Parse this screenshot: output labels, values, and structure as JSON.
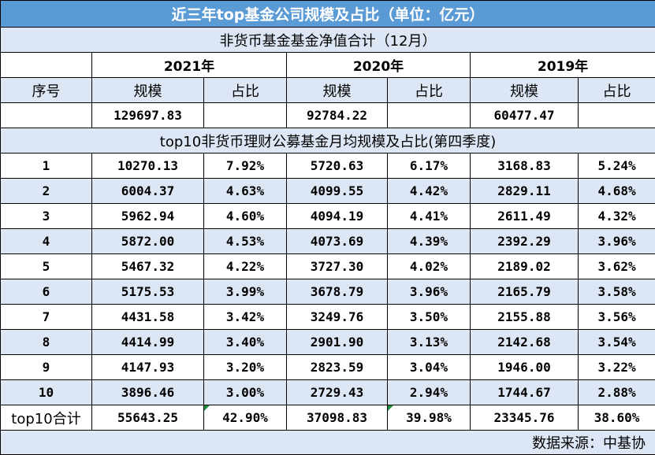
{
  "title": "近三年top基金公司规模及占比（单位：亿元）",
  "section1_title": "非货币基金基金净值合计（12月）",
  "years": [
    "2021年",
    "2020年",
    "2019年"
  ],
  "seq_header": "序号",
  "scale_header": "规模",
  "ratio_header": "占比",
  "totals": [
    "129697.83",
    "92784.22",
    "60477.47"
  ],
  "section2_title": "top10非货币理财公募基金月均规模及占比(第四季度)",
  "rows": [
    {
      "seq": "1",
      "v2021": "10270.13",
      "p2021": "7.92%",
      "v2020": "5720.63",
      "p2020": "6.17%",
      "v2019": "3168.83",
      "p2019": "5.24%"
    },
    {
      "seq": "2",
      "v2021": "6004.37",
      "p2021": "4.63%",
      "v2020": "4099.55",
      "p2020": "4.42%",
      "v2019": "2829.11",
      "p2019": "4.68%"
    },
    {
      "seq": "3",
      "v2021": "5962.94",
      "p2021": "4.60%",
      "v2020": "4094.19",
      "p2020": "4.41%",
      "v2019": "2611.49",
      "p2019": "4.32%"
    },
    {
      "seq": "4",
      "v2021": "5872.00",
      "p2021": "4.53%",
      "v2020": "4073.69",
      "p2020": "4.39%",
      "v2019": "2392.29",
      "p2019": "3.96%"
    },
    {
      "seq": "5",
      "v2021": "5467.32",
      "p2021": "4.22%",
      "v2020": "3727.30",
      "p2020": "4.02%",
      "v2019": "2189.02",
      "p2019": "3.62%"
    },
    {
      "seq": "6",
      "v2021": "5175.53",
      "p2021": "3.99%",
      "v2020": "3678.79",
      "p2020": "3.96%",
      "v2019": "2165.79",
      "p2019": "3.58%"
    },
    {
      "seq": "7",
      "v2021": "4431.58",
      "p2021": "3.42%",
      "v2020": "3249.76",
      "p2020": "3.50%",
      "v2019": "2155.88",
      "p2019": "3.56%"
    },
    {
      "seq": "8",
      "v2021": "4414.99",
      "p2021": "3.40%",
      "v2020": "2901.90",
      "p2020": "3.13%",
      "v2019": "2142.68",
      "p2019": "3.54%"
    },
    {
      "seq": "9",
      "v2021": "4147.93",
      "p2021": "3.20%",
      "v2020": "2823.59",
      "p2020": "3.04%",
      "v2019": "1946.00",
      "p2019": "3.22%"
    },
    {
      "seq": "10",
      "v2021": "3896.46",
      "p2021": "3.00%",
      "v2020": "2729.43",
      "p2020": "2.94%",
      "v2019": "1744.67",
      "p2019": "2.88%"
    }
  ],
  "sum_row": {
    "label": "top10合计",
    "v2021": "55643.25",
    "p2021": "42.90%",
    "v2020": "37098.83",
    "p2020": "39.98%",
    "v2019": "23345.76",
    "p2019": "38.60%"
  },
  "source": "数据来源：中基协",
  "colors": {
    "title_bg": "#5b9bd5",
    "band_bg": "#dde6f5",
    "mark": "#1e8a3c"
  }
}
